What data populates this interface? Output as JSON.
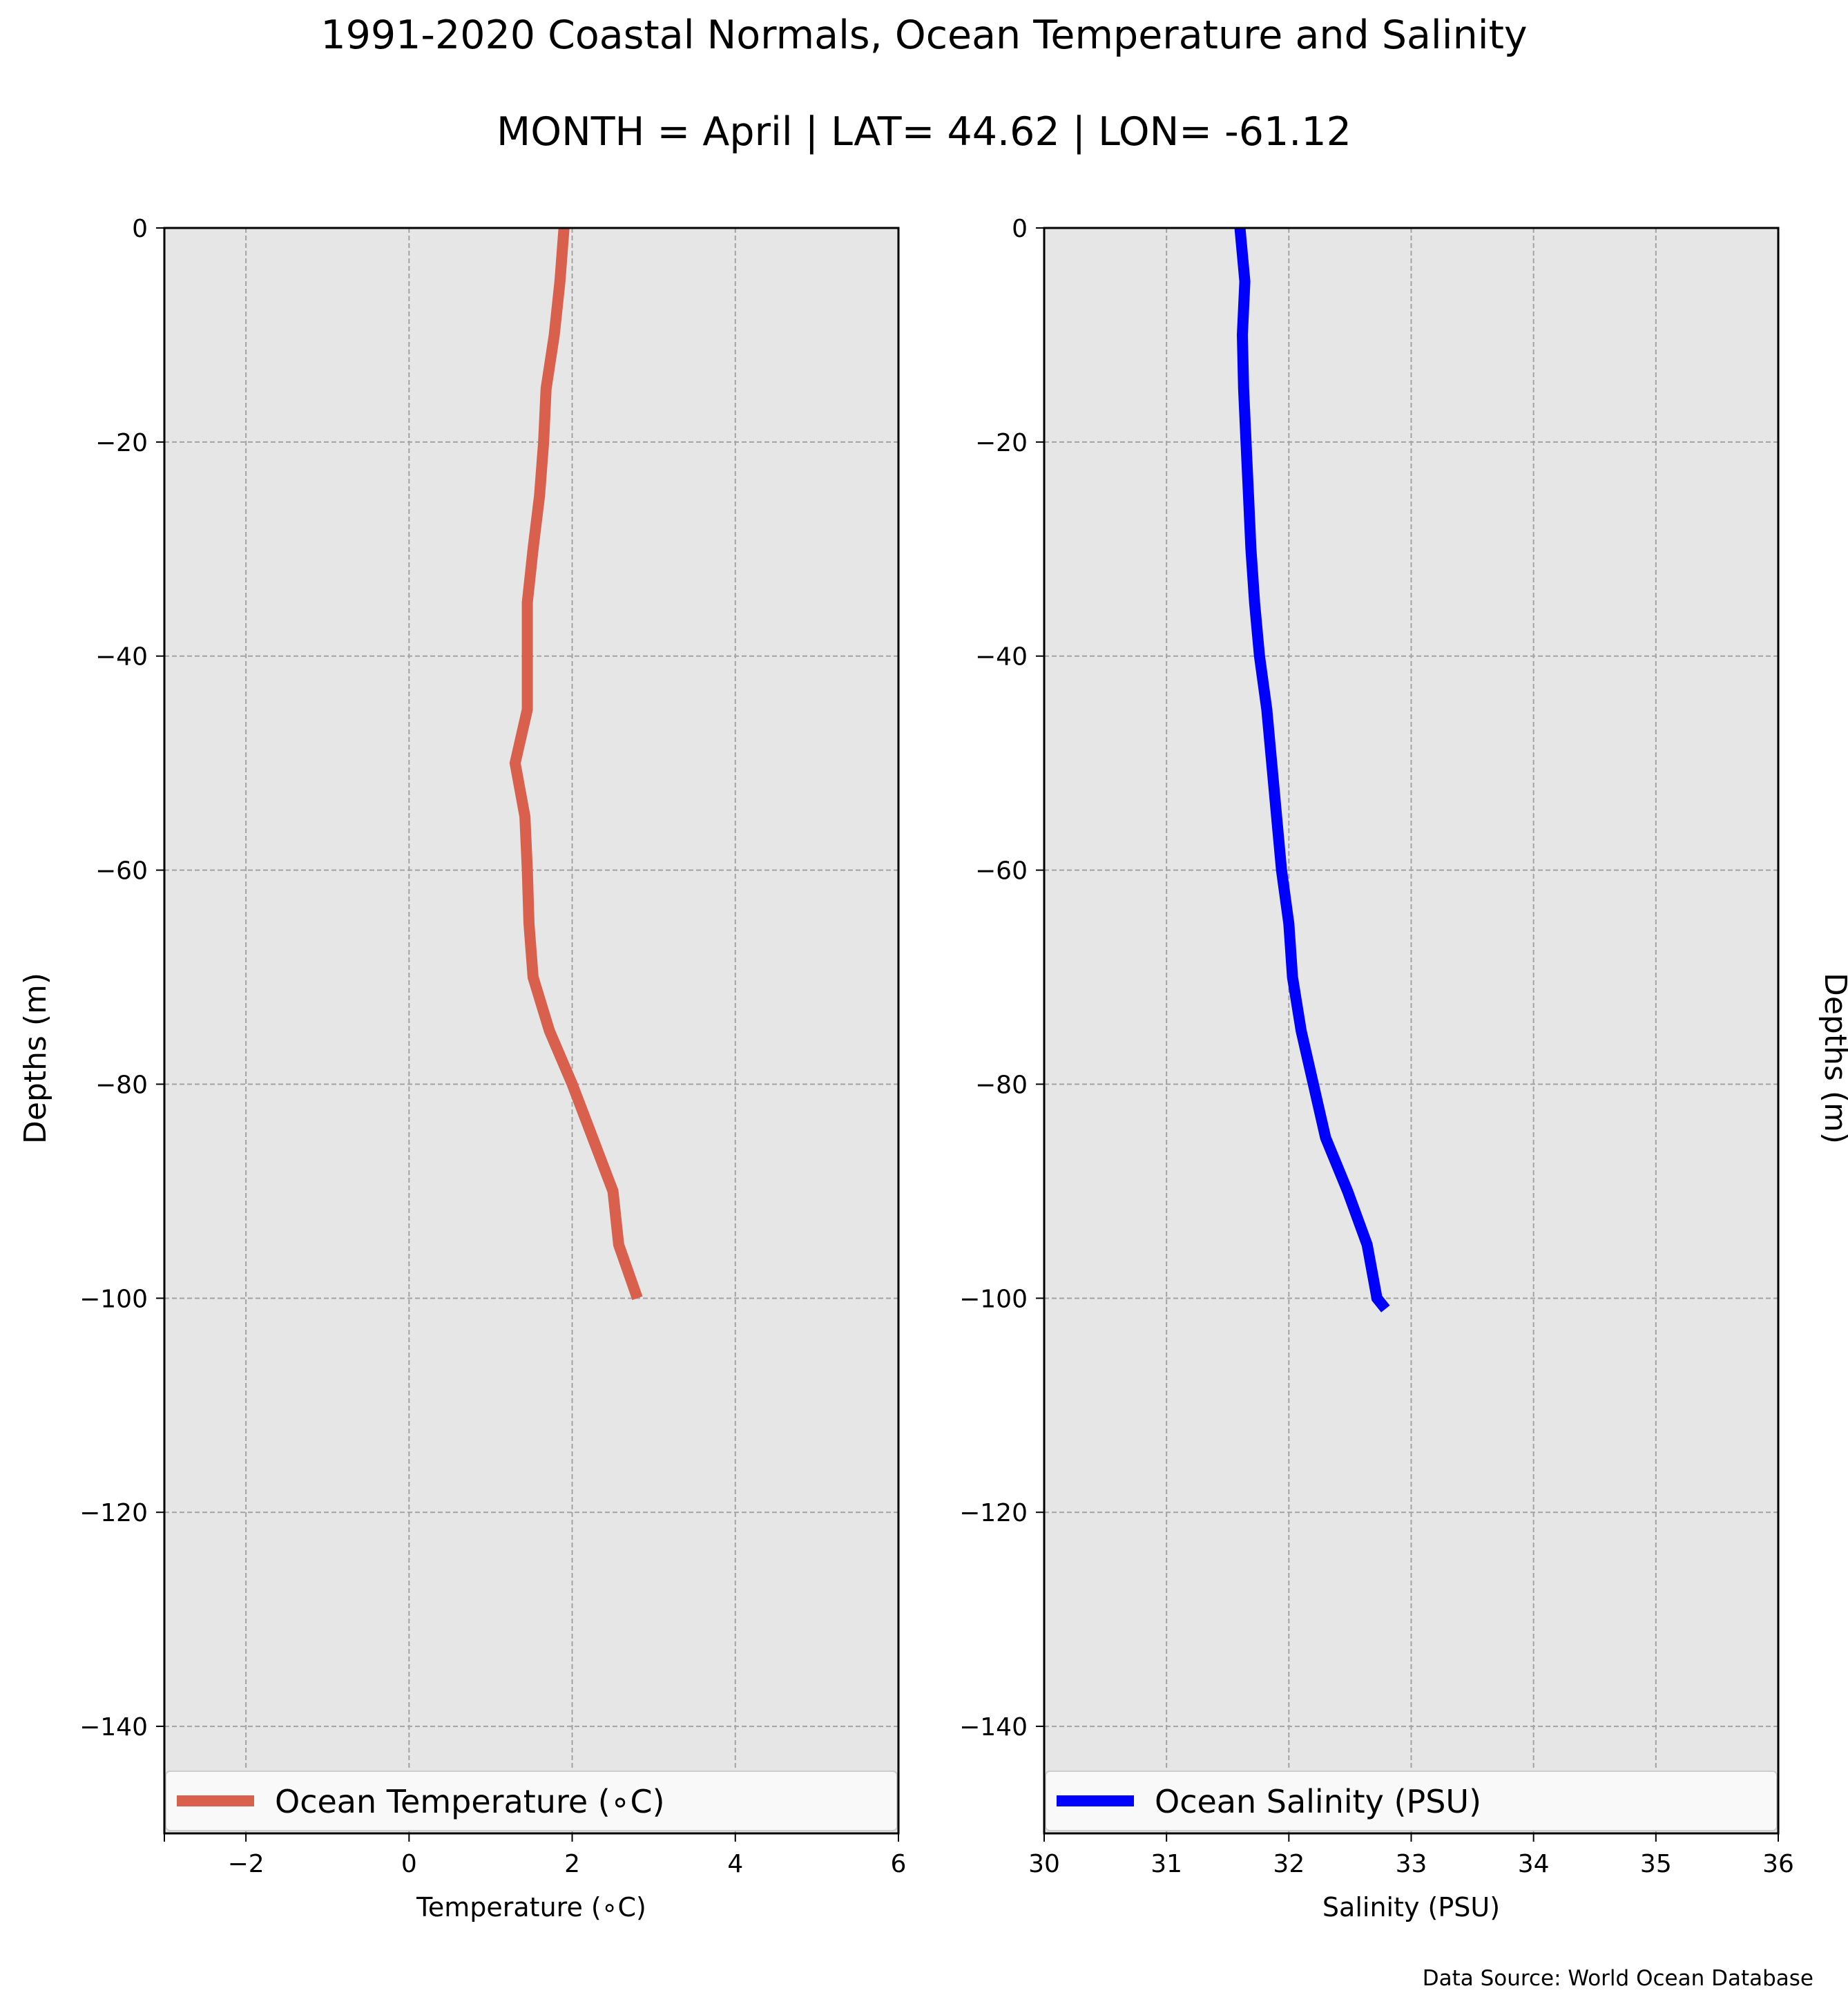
{
  "title": "1991-2020 Coastal Normals, Ocean Temperature and Salinity",
  "subtitle": "MONTH = April | LAT= 44.62 | LON= -61.12",
  "source": "Data Source: World Ocean Database",
  "chart_data": [
    {
      "type": "line",
      "xlabel": "Temperature (∘C)",
      "ylabel": "Depths (m)",
      "xlim": [
        -3,
        6
      ],
      "ylim": [
        -150,
        0
      ],
      "xticks": [
        -2,
        0,
        2,
        4,
        6
      ],
      "xtick_labels": [
        "−2",
        "0",
        "2",
        "4",
        "6"
      ],
      "yticks": [
        0,
        -20,
        -40,
        -60,
        -80,
        -100,
        -120,
        -140
      ],
      "ytick_labels": [
        "0",
        "−20",
        "−40",
        "−60",
        "−80",
        "−100",
        "−120",
        "−140"
      ],
      "grid": true,
      "background": "#e6e6e6",
      "legend_position": "bottom",
      "series": [
        {
          "name": "Ocean Temperature (∘C)",
          "color": "#d9604c",
          "x": [
            1.9,
            1.85,
            1.78,
            1.68,
            1.65,
            1.6,
            1.52,
            1.45,
            1.45,
            1.3,
            1.42,
            1.45,
            1.47,
            1.52,
            1.72,
            2.0,
            2.25,
            2.5,
            2.57,
            2.8
          ],
          "y": [
            0,
            -5,
            -10,
            -15,
            -20,
            -25,
            -30,
            -35,
            -45,
            -50,
            -55,
            -60,
            -65,
            -70,
            -75,
            -80,
            -85,
            -90,
            -95,
            -100
          ]
        }
      ]
    },
    {
      "type": "line",
      "xlabel": "Salinity (PSU)",
      "ylabel": "Depths (m)",
      "xlim": [
        30,
        36
      ],
      "ylim": [
        -150,
        0
      ],
      "xticks": [
        30,
        31,
        32,
        33,
        34,
        35,
        36
      ],
      "xtick_labels": [
        "30",
        "31",
        "32",
        "33",
        "34",
        "35",
        "36"
      ],
      "yticks": [
        0,
        -20,
        -40,
        -60,
        -80,
        -100,
        -120,
        -140
      ],
      "ytick_labels": [
        "0",
        "−20",
        "−40",
        "−60",
        "−80",
        "−100",
        "−120",
        "−140"
      ],
      "grid": true,
      "background": "#e6e6e6",
      "legend_position": "bottom",
      "ylabel_side": "right",
      "series": [
        {
          "name": "Ocean Salinity (PSU)",
          "color": "#0000ff",
          "x": [
            31.6,
            31.64,
            31.62,
            31.63,
            31.65,
            31.67,
            31.69,
            31.72,
            31.76,
            31.82,
            31.86,
            31.9,
            31.94,
            32.0,
            32.03,
            32.1,
            32.2,
            32.3,
            32.48,
            32.64,
            32.72,
            32.79
          ],
          "y": [
            0,
            -5,
            -10,
            -15,
            -20,
            -25,
            -30,
            -35,
            -40,
            -45,
            -50,
            -55,
            -60,
            -65,
            -70,
            -75,
            -80,
            -85,
            -90,
            -95,
            -100,
            -101
          ]
        }
      ]
    }
  ]
}
